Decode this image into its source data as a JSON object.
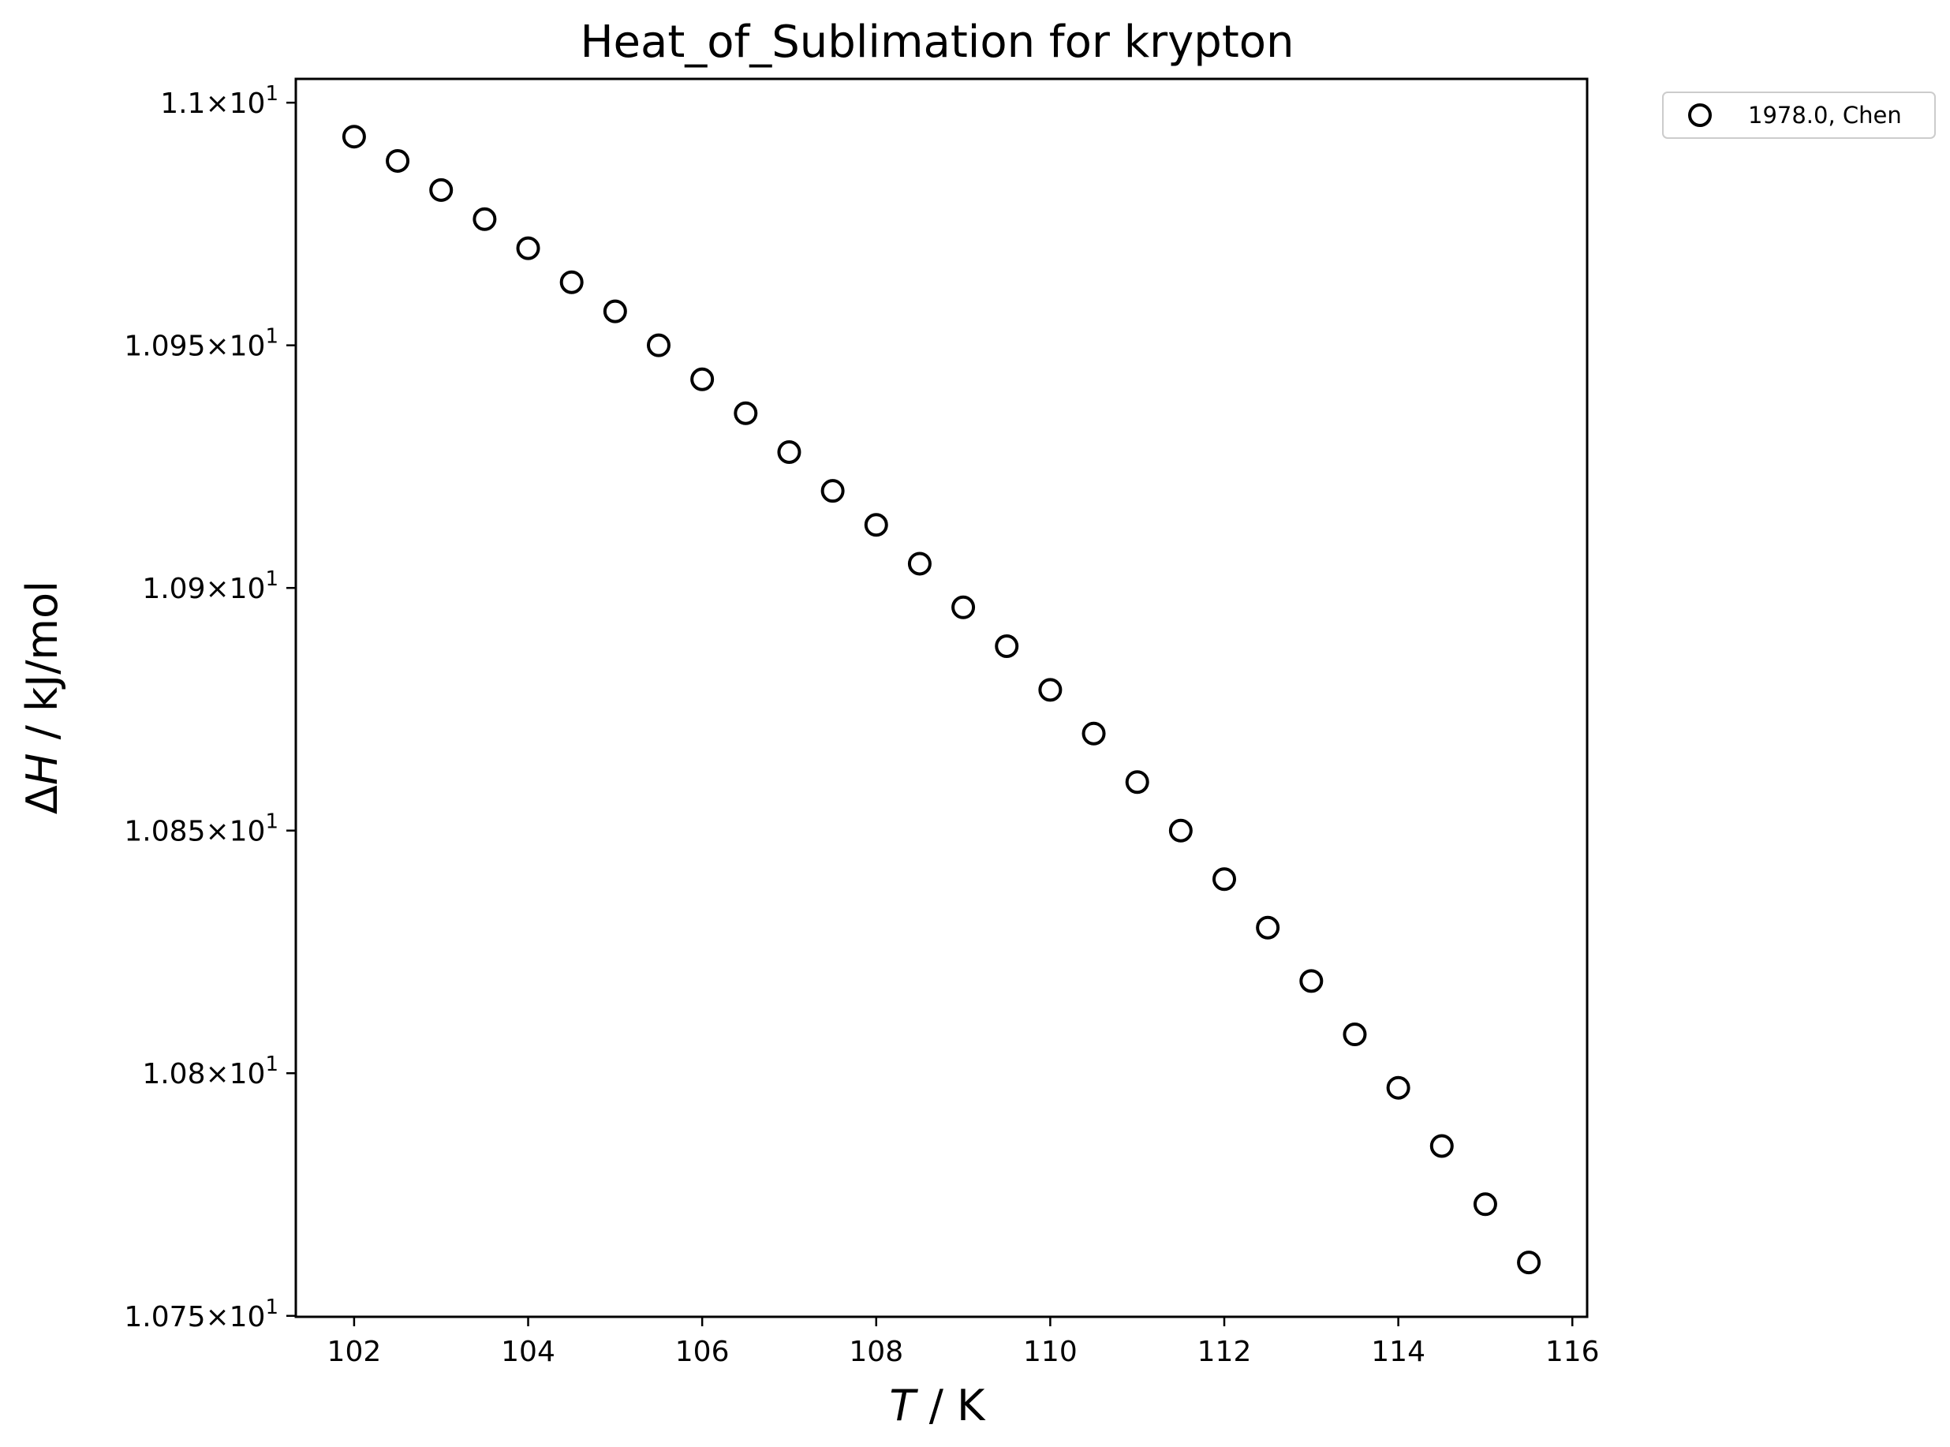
{
  "chart_data": {
    "type": "scatter",
    "title": "Heat_of_Sublimation for krypton",
    "xlabel": {
      "var": "T",
      "unit": " / K"
    },
    "ylabel": {
      "var": "H",
      "prefix": "Δ",
      "unit": " / kJ/mol"
    },
    "x_ticks": [
      "102",
      "104",
      "106",
      "108",
      "110",
      "112",
      "114",
      "116"
    ],
    "y_ticks": [
      {
        "value": 10.75,
        "mantissa": "1.075",
        "exp": "1"
      },
      {
        "value": 10.8,
        "mantissa": "1.08",
        "exp": "1"
      },
      {
        "value": 10.85,
        "mantissa": "1.085",
        "exp": "1"
      },
      {
        "value": 10.9,
        "mantissa": "1.09",
        "exp": "1"
      },
      {
        "value": 10.95,
        "mantissa": "1.095",
        "exp": "1"
      },
      {
        "value": 11.0,
        "mantissa": "1.1",
        "exp": "1"
      }
    ],
    "xlim": [
      101.33,
      116.17
    ],
    "ylim": [
      10.7498,
      11.0049
    ],
    "legend_position": "outside-top-right",
    "series": [
      {
        "name": "1978.0, Chen",
        "marker": "open-circle",
        "color": "#000000",
        "points": [
          [
            102.0,
            10.993
          ],
          [
            102.5,
            10.988
          ],
          [
            103.0,
            10.982
          ],
          [
            103.5,
            10.976
          ],
          [
            104.0,
            10.97
          ],
          [
            104.5,
            10.963
          ],
          [
            105.0,
            10.957
          ],
          [
            105.5,
            10.95
          ],
          [
            106.0,
            10.943
          ],
          [
            106.5,
            10.936
          ],
          [
            107.0,
            10.928
          ],
          [
            107.5,
            10.92
          ],
          [
            108.0,
            10.913
          ],
          [
            108.5,
            10.905
          ],
          [
            109.0,
            10.896
          ],
          [
            109.5,
            10.888
          ],
          [
            110.0,
            10.879
          ],
          [
            110.5,
            10.87
          ],
          [
            111.0,
            10.86
          ],
          [
            111.5,
            10.85
          ],
          [
            112.0,
            10.84
          ],
          [
            112.5,
            10.83
          ],
          [
            113.0,
            10.819
          ],
          [
            113.5,
            10.808
          ],
          [
            114.0,
            10.797
          ],
          [
            114.5,
            10.785
          ],
          [
            115.0,
            10.773
          ],
          [
            115.5,
            10.761
          ]
        ]
      }
    ]
  }
}
